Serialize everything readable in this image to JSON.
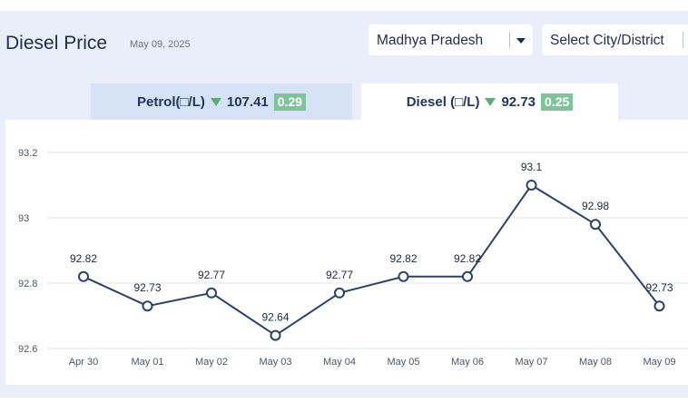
{
  "header": {
    "title": "Diesel Price",
    "date": "May 09, 2025",
    "state_select": "Madhya Pradesh",
    "city_select": "Select City/District"
  },
  "tabs": [
    {
      "label": "Petrol(□/L)",
      "price": "107.41",
      "change": "0.29",
      "direction": "down",
      "active": false
    },
    {
      "label": "Diesel (□/L)",
      "price": "92.73",
      "change": "0.25",
      "direction": "down",
      "active": true
    }
  ],
  "colors": {
    "line": "#2c4266",
    "badge": "#7ec39a",
    "arrow_down": "#5fa97a",
    "panel_bg": "#e9eef8",
    "active_tab_bg": "#ffffff",
    "inactive_tab_bg": "#d6e2f6"
  },
  "chart_data": {
    "type": "line",
    "categories": [
      "Apr 30",
      "May 01",
      "May 02",
      "May 03",
      "May 04",
      "May 05",
      "May 06",
      "May 07",
      "May 08",
      "May 09"
    ],
    "values": [
      92.82,
      92.73,
      92.77,
      92.64,
      92.77,
      92.82,
      92.82,
      93.1,
      92.98,
      92.73
    ],
    "data_labels": [
      "92.82",
      "92.73",
      "92.77",
      "92.64",
      "92.77",
      "92.82",
      "92.82",
      "93.1",
      "92.98",
      "92.73"
    ],
    "yticks": [
      "92.6",
      "92.8",
      "93",
      "93.2"
    ],
    "ytick_values": [
      92.6,
      92.8,
      93.0,
      93.2
    ],
    "ylim": [
      92.6,
      93.2
    ],
    "grid": true,
    "title": "",
    "xlabel": "",
    "ylabel": ""
  }
}
